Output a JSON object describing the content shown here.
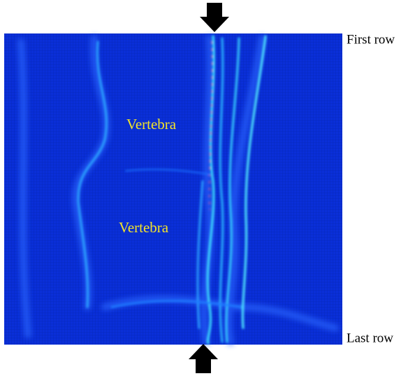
{
  "row_labels": {
    "first": "First row",
    "last": "Last row"
  },
  "annotations": [
    "Vertebra",
    "Vertebra"
  ]
}
